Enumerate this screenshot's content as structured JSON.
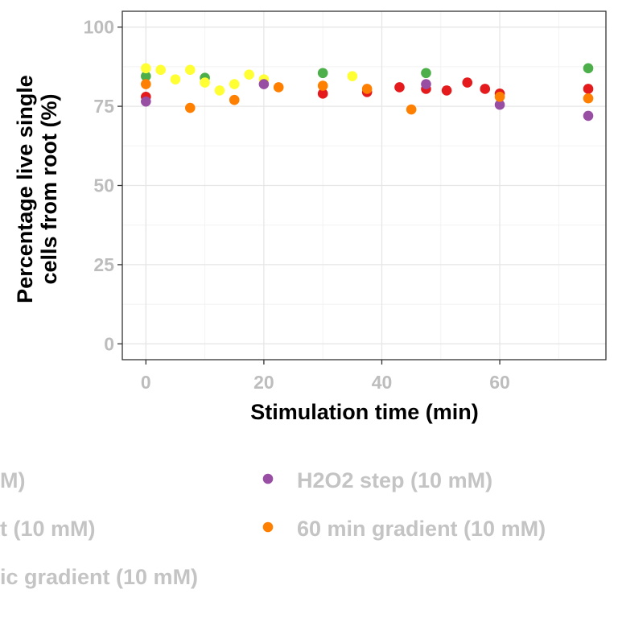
{
  "chart_data": {
    "type": "scatter",
    "xlabel": "Stimulation time (min)",
    "ylabel_lines": [
      "Percentage live single",
      "cells from root (%)"
    ],
    "xlim": [
      -4,
      78
    ],
    "ylim": [
      -5,
      105
    ],
    "x_ticks": [
      0,
      20,
      40,
      60
    ],
    "y_ticks": [
      0,
      25,
      50,
      75,
      100
    ],
    "grid": true,
    "legend_position": "bottom",
    "series": [
      {
        "name": "M)",
        "color": "#4daf4a",
        "points": [
          [
            0,
            84.5
          ],
          [
            10,
            84
          ],
          [
            30,
            85.5
          ],
          [
            47.5,
            85.5
          ],
          [
            75,
            87
          ]
        ]
      },
      {
        "name": "t (10 mM)",
        "color": "#ffff33",
        "points": [
          [
            0,
            87
          ],
          [
            2.5,
            86.5
          ],
          [
            5,
            83.5
          ],
          [
            7.5,
            86.5
          ],
          [
            10,
            82.5
          ],
          [
            12.5,
            80
          ],
          [
            15,
            82
          ],
          [
            17.5,
            85
          ],
          [
            20,
            83.5
          ],
          [
            35,
            84.5
          ]
        ]
      },
      {
        "name": "ic gradient (10 mM)",
        "color": "#e41a1c",
        "points": [
          [
            0,
            78
          ],
          [
            37.5,
            79.5
          ],
          [
            43,
            81
          ],
          [
            47.5,
            80.5
          ],
          [
            51,
            80
          ],
          [
            54.5,
            82.5
          ],
          [
            57.5,
            80.5
          ],
          [
            60,
            79
          ],
          [
            75,
            80.5
          ],
          [
            30,
            79
          ]
        ]
      },
      {
        "name": "H2O2 step (10 mM)",
        "color": "#984ea3",
        "points": [
          [
            0,
            76.5
          ],
          [
            20,
            82
          ],
          [
            47.5,
            82
          ],
          [
            60,
            75.5
          ],
          [
            75,
            72
          ]
        ]
      },
      {
        "name": "60 min gradient (10 mM)",
        "color": "#ff7f00",
        "points": [
          [
            0,
            82
          ],
          [
            7.5,
            74.5
          ],
          [
            15,
            77
          ],
          [
            22.5,
            81
          ],
          [
            30,
            81.5
          ],
          [
            37.5,
            80.5
          ],
          [
            45,
            74
          ],
          [
            60,
            78
          ],
          [
            75,
            77.5
          ]
        ]
      }
    ]
  }
}
